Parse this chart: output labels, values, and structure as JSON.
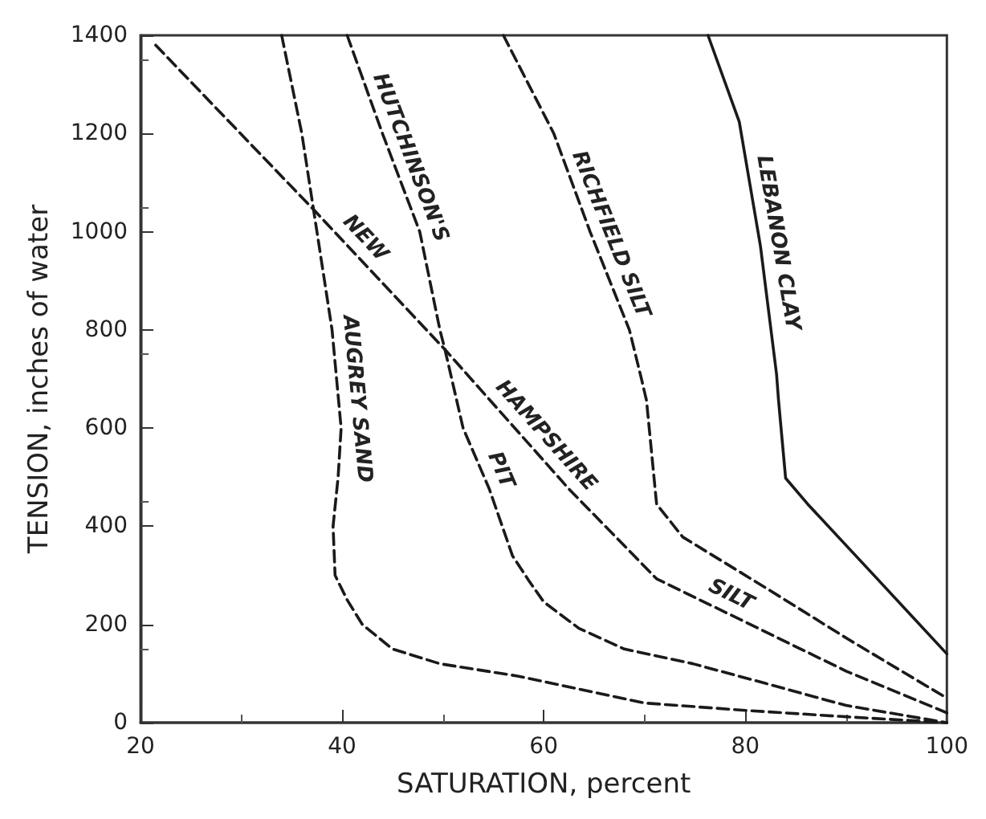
{
  "chart_data": {
    "type": "line",
    "xlabel": "SATURATION, percent",
    "ylabel": "TENSION, inches of water",
    "xlim": [
      20,
      100
    ],
    "xticks": [
      20,
      40,
      60,
      80,
      100
    ],
    "ylim": [
      0,
      1400
    ],
    "yticks": [
      0,
      200,
      400,
      600,
      800,
      1000,
      1200,
      1400
    ],
    "grid": false,
    "legend": false,
    "marker": "none",
    "series": [
      {
        "color": "#1a1a1a",
        "line_style": "dashed",
        "x": [
          34,
          36,
          37.5,
          39,
          39.9,
          39.6,
          39.1,
          39.3,
          40.5,
          42,
          45,
          49.7,
          57.4,
          70,
          80,
          90,
          100
        ],
        "values": [
          1400,
          1200,
          1000,
          800,
          600,
          500,
          400,
          300,
          250,
          200,
          150,
          120,
          95,
          40,
          25,
          12,
          0
        ]
      },
      {
        "color": "#1a1a1a",
        "line_style": "dashed",
        "x": [
          40.5,
          44,
          47.7,
          49.7,
          50.2,
          52,
          54.6,
          56.9,
          58.5,
          60,
          63.5,
          68,
          74.8,
          82,
          90,
          100
        ],
        "values": [
          1400,
          1200,
          1000,
          800,
          760,
          600,
          476,
          340,
          290,
          246,
          192,
          150,
          120,
          80,
          35,
          0
        ]
      },
      {
        "color": "#1a1a1a",
        "line_style": "dashed",
        "x": [
          21.5,
          37.4,
          50.2,
          62.5,
          71.2,
          80,
          90,
          100
        ],
        "values": [
          1380,
          1040,
          760,
          476,
          293,
          205,
          105,
          20
        ]
      },
      {
        "color": "#1a1a1a",
        "line_style": "dashed",
        "x": [
          56,
          61,
          64.6,
          68.5,
          69.7,
          70.2,
          71.2,
          73.8,
          82,
          90.2,
          100
        ],
        "values": [
          1400,
          1200,
          1000,
          800,
          700,
          656,
          445,
          378,
          275,
          170,
          50
        ]
      },
      {
        "color": "#1a1a1a",
        "line_style": "solid",
        "x": [
          76.3,
          79.4,
          81.5,
          83.1,
          83.3,
          84,
          86.2,
          93,
          100
        ],
        "values": [
          1400,
          1224,
          971,
          710,
          656,
          498,
          445,
          295,
          140
        ]
      }
    ],
    "annotations": [
      {
        "text": "AUGREY SAND",
        "x": 39.7,
        "y": 656
      },
      {
        "text": "HUTCHINSON'S",
        "x": 45.1,
        "y": 1138
      },
      {
        "text": "PIT",
        "x": 54.1,
        "y": 500
      },
      {
        "text": "NEW",
        "x": 41,
        "y": 962
      },
      {
        "text": "HAMPSHIRE",
        "x": 58.9,
        "y": 560
      },
      {
        "text": "SILT",
        "x": 77.8,
        "y": 227
      },
      {
        "text": "RICHFIELD SILT",
        "x": 65,
        "y": 981
      },
      {
        "text": "LEBANON CLAY",
        "x": 81.5,
        "y": 971
      }
    ]
  }
}
